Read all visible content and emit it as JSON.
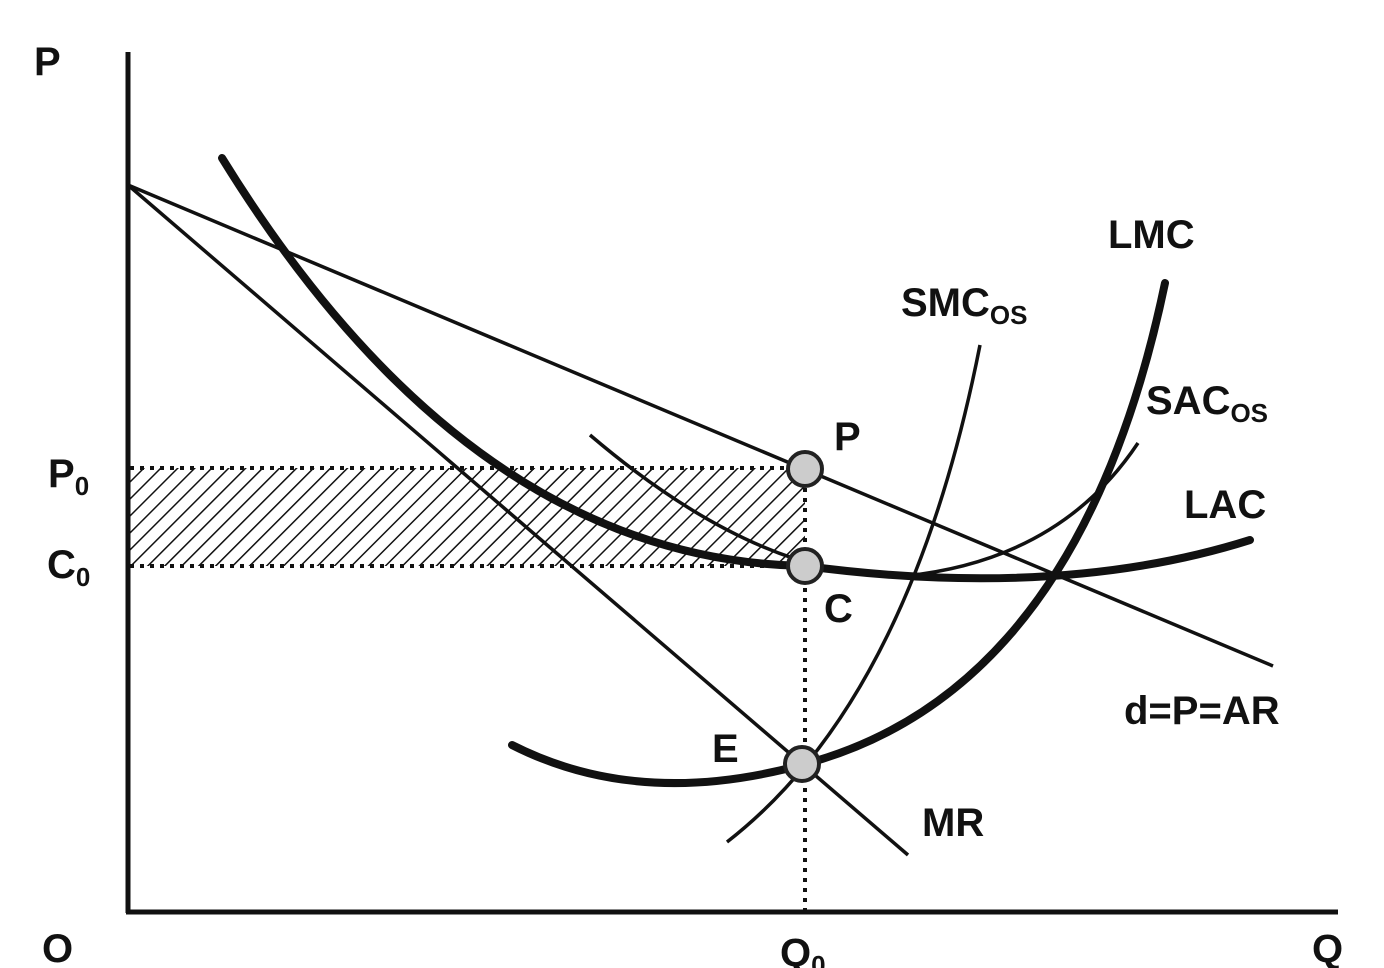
{
  "axes": {
    "y_label": "P",
    "x_label": "Q",
    "origin_label": "O"
  },
  "price_levels": {
    "p0_main": "P",
    "p0_sub": "0",
    "c0_main": "C",
    "c0_sub": "0"
  },
  "quantity": {
    "q0_main": "Q",
    "q0_sub": "0"
  },
  "curves": {
    "lmc": "LMC",
    "smc_main": "SMC",
    "smc_sub": "OS",
    "sac_main": "SAC",
    "sac_sub": "OS",
    "lac": "LAC",
    "demand": "d=P=AR",
    "mr": "MR"
  },
  "points": {
    "p": "P",
    "c": "C",
    "e": "E"
  },
  "colors": {
    "ink": "#111111",
    "point_fill": "#cccccc",
    "background": "#ffffff"
  }
}
